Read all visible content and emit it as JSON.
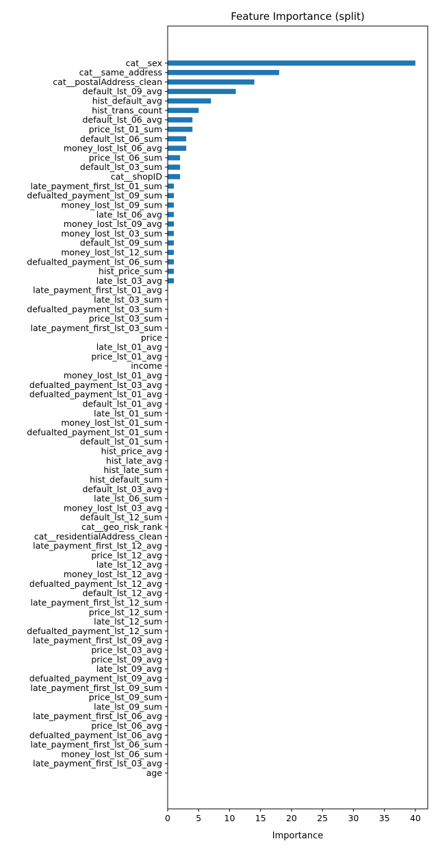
{
  "chart_data": {
    "type": "bar",
    "orientation": "horizontal",
    "title": "Feature Importance (split)",
    "xlabel": "Importance",
    "ylabel": "",
    "xlim": [
      0,
      42
    ],
    "xticks": [
      0,
      5,
      10,
      15,
      20,
      25,
      30,
      35,
      40
    ],
    "grid": false,
    "bar_color": "#1f77b4",
    "categories": [
      "cat__sex",
      "cat__same_address",
      "cat__postalAddress_clean",
      "default_lst_09_avg",
      "hist_default_avg",
      "hist_trans_count",
      "default_lst_06_avg",
      "price_lst_01_sum",
      "default_lst_06_sum",
      "money_lost_lst_06_avg",
      "price_lst_06_sum",
      "default_lst_03_sum",
      "cat__shopID",
      "late_payment_first_lst_01_sum",
      "defualted_payment_lst_09_sum",
      "money_lost_lst_09_sum",
      "late_lst_06_avg",
      "money_lost_lst_09_avg",
      "money_lost_lst_03_sum",
      "default_lst_09_sum",
      "money_lost_lst_12_sum",
      "defualted_payment_lst_06_sum",
      "hist_price_sum",
      "late_lst_03_avg",
      "late_payment_first_lst_01_avg",
      "late_lst_03_sum",
      "defualted_payment_lst_03_sum",
      "price_lst_03_sum",
      "late_payment_first_lst_03_sum",
      "price",
      "late_lst_01_avg",
      "price_lst_01_avg",
      "income",
      "money_lost_lst_01_avg",
      "defualted_payment_lst_03_avg",
      "defualted_payment_lst_01_avg",
      "default_lst_01_avg",
      "late_lst_01_sum",
      "money_lost_lst_01_sum",
      "defualted_payment_lst_01_sum",
      "default_lst_01_sum",
      "hist_price_avg",
      "hist_late_avg",
      "hist_late_sum",
      "hist_default_sum",
      "default_lst_03_avg",
      "late_lst_06_sum",
      "money_lost_lst_03_avg",
      "default_lst_12_sum",
      "cat__geo_risk_rank",
      "cat__residentialAddress_clean",
      "late_payment_first_lst_12_avg",
      "price_lst_12_avg",
      "late_lst_12_avg",
      "money_lost_lst_12_avg",
      "defualted_payment_lst_12_avg",
      "default_lst_12_avg",
      "late_payment_first_lst_12_sum",
      "price_lst_12_sum",
      "late_lst_12_sum",
      "defualted_payment_lst_12_sum",
      "late_payment_first_lst_09_avg",
      "price_lst_03_avg",
      "price_lst_09_avg",
      "late_lst_09_avg",
      "defualted_payment_lst_09_avg",
      "late_payment_first_lst_09_sum",
      "price_lst_09_sum",
      "late_lst_09_sum",
      "late_payment_first_lst_06_avg",
      "price_lst_06_avg",
      "defualted_payment_lst_06_avg",
      "late_payment_first_lst_06_sum",
      "money_lost_lst_06_sum",
      "late_payment_first_lst_03_avg",
      "age"
    ],
    "values": [
      40,
      18,
      14,
      11,
      7,
      5,
      4,
      4,
      3,
      3,
      2,
      2,
      2,
      1,
      1,
      1,
      1,
      1,
      1,
      1,
      1,
      1,
      1,
      1,
      0,
      0,
      0,
      0,
      0,
      0,
      0,
      0,
      0,
      0,
      0,
      0,
      0,
      0,
      0,
      0,
      0,
      0,
      0,
      0,
      0,
      0,
      0,
      0,
      0,
      0,
      0,
      0,
      0,
      0,
      0,
      0,
      0,
      0,
      0,
      0,
      0,
      0,
      0,
      0,
      0,
      0,
      0,
      0,
      0,
      0,
      0,
      0,
      0,
      0,
      0,
      0
    ]
  }
}
